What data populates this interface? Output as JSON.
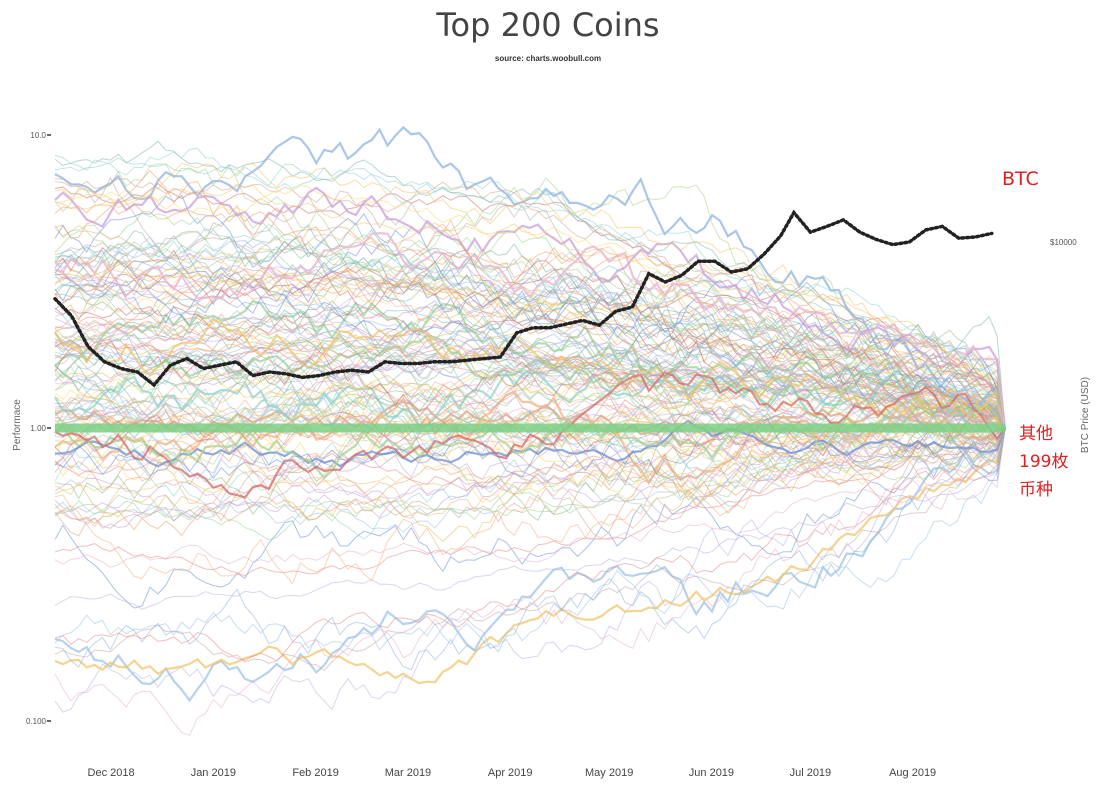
{
  "chart_data": {
    "type": "line",
    "title": "Top 200 Coins",
    "subtitle": "source: charts.woobull.com",
    "ylabel": "Performace",
    "y2label": "BTC Price (USD)",
    "y_scale": "log",
    "ylim": [
      0.1,
      10.0
    ],
    "y_ticks": [
      {
        "value": 10.0,
        "label": "10.0"
      },
      {
        "value": 1.0,
        "label": "1.00"
      },
      {
        "value": 0.1,
        "label": "0.100"
      }
    ],
    "y2_ticks": [
      {
        "value": 10000,
        "label": "$10000"
      }
    ],
    "x_ticks": [
      "Dec 2018",
      "Jan 2019",
      "Feb 2019",
      "Mar 2019",
      "Apr 2019",
      "May 2019",
      "Jun 2019",
      "Jul 2019",
      "Aug 2019"
    ],
    "x_start": "2018-11-14",
    "x_end": "2019-08-29",
    "grid": false,
    "legend": "none",
    "series": [
      {
        "name": "BTC",
        "style": "dotted-black",
        "x": [
          "2018-11-14",
          "2018-11-19",
          "2018-11-24",
          "2018-11-29",
          "2018-12-04",
          "2018-12-09",
          "2018-12-14",
          "2018-12-19",
          "2018-12-24",
          "2018-12-29",
          "2019-01-03",
          "2019-01-08",
          "2019-01-13",
          "2019-01-18",
          "2019-01-23",
          "2019-01-28",
          "2019-02-02",
          "2019-02-07",
          "2019-02-12",
          "2019-02-17",
          "2019-02-22",
          "2019-02-27",
          "2019-03-04",
          "2019-03-09",
          "2019-03-14",
          "2019-03-19",
          "2019-03-24",
          "2019-03-29",
          "2019-04-03",
          "2019-04-08",
          "2019-04-13",
          "2019-04-18",
          "2019-04-23",
          "2019-04-28",
          "2019-05-03",
          "2019-05-08",
          "2019-05-13",
          "2019-05-18",
          "2019-05-23",
          "2019-05-28",
          "2019-06-02",
          "2019-06-07",
          "2019-06-12",
          "2019-06-17",
          "2019-06-22",
          "2019-06-26",
          "2019-07-01",
          "2019-07-06",
          "2019-07-11",
          "2019-07-16",
          "2019-07-21",
          "2019-07-26",
          "2019-07-31",
          "2019-08-05",
          "2019-08-10",
          "2019-08-15",
          "2019-08-20",
          "2019-08-25"
        ],
        "values": [
          6400,
          5600,
          4400,
          3900,
          3700,
          3600,
          3250,
          3800,
          4000,
          3700,
          3800,
          3900,
          3500,
          3600,
          3550,
          3450,
          3500,
          3600,
          3650,
          3600,
          3900,
          3850,
          3850,
          3900,
          3900,
          3950,
          4000,
          4050,
          4900,
          5100,
          5100,
          5250,
          5400,
          5200,
          5800,
          6000,
          7800,
          7300,
          7700,
          8600,
          8600,
          7900,
          8100,
          9100,
          10500,
          12600,
          10800,
          11300,
          11900,
          10800,
          10200,
          9800,
          10000,
          11000,
          11300,
          10300,
          10400,
          10700
        ]
      }
    ],
    "annotations": [
      {
        "text": "BTC",
        "color": "#e02020"
      },
      {
        "text": "其他",
        "color": "#e02020"
      },
      {
        "text": "199枚",
        "color": "#e02020"
      },
      {
        "text": "币种",
        "color": "#e02020"
      }
    ],
    "other_series_note": "199 other coin performance lines normalized to 1.00 at the end date",
    "colors": {
      "btc": "#222222",
      "baseline": "#7ccf85",
      "annotation": "#e02020"
    }
  }
}
